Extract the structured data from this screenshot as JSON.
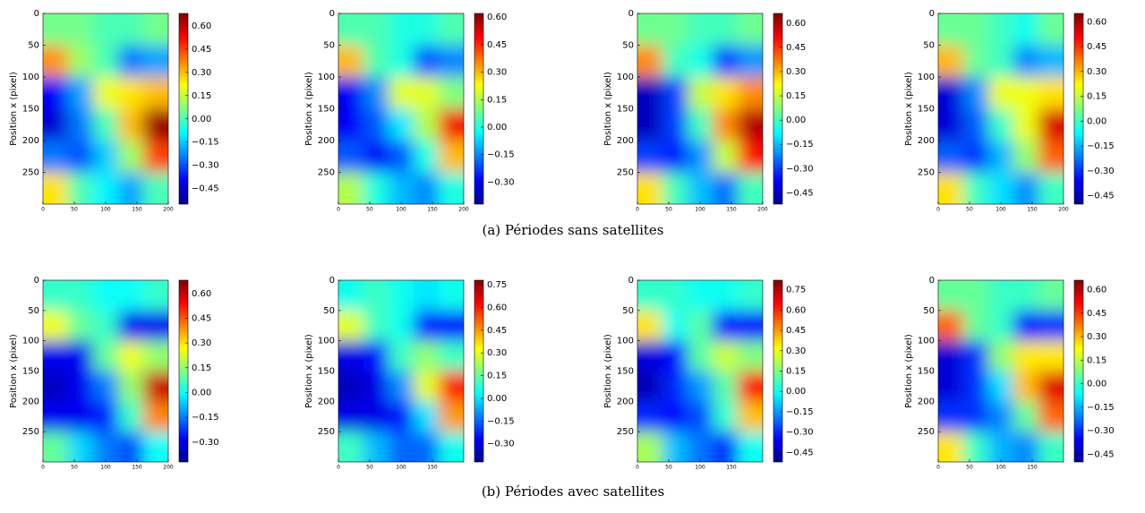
{
  "chart_data": [
    {
      "type": "heatmap",
      "ylabel": "Position x (pixel)",
      "xlim": [
        0,
        200
      ],
      "ylim": [
        0,
        300
      ],
      "xticks": [
        0,
        50,
        100,
        150,
        200
      ],
      "yticks": [
        0,
        50,
        100,
        150,
        200,
        250
      ],
      "colormap": "jet",
      "zlim": [
        -0.55,
        0.68
      ],
      "zticks": [
        {
          "value": 0.6,
          "label": "0.60"
        },
        {
          "value": 0.45,
          "label": "0.45"
        },
        {
          "value": 0.3,
          "label": "0.30"
        },
        {
          "value": 0.15,
          "label": "0.15"
        },
        {
          "value": 0,
          "label": "0.00"
        },
        {
          "value": -0.15,
          "label": "−0.15"
        },
        {
          "value": -0.3,
          "label": "−0.30"
        },
        {
          "value": -0.45,
          "label": "−0.45"
        }
      ],
      "z": [
        [
          0.05,
          0.05,
          0.0,
          0.0,
          0.05
        ],
        [
          0.35,
          0.1,
          0.0,
          -0.25,
          -0.2
        ],
        [
          -0.4,
          -0.2,
          0.2,
          0.25,
          0.3
        ],
        [
          -0.45,
          -0.25,
          0.0,
          0.3,
          0.65
        ],
        [
          -0.25,
          -0.3,
          -0.15,
          0.1,
          0.45
        ],
        [
          0.25,
          0.0,
          -0.1,
          -0.2,
          0.0
        ]
      ]
    },
    {
      "type": "heatmap",
      "ylabel": "Position x (pixel)",
      "xlim": [
        0,
        200
      ],
      "ylim": [
        0,
        300
      ],
      "xticks": [
        0,
        50,
        100,
        150,
        200
      ],
      "yticks": [
        0,
        50,
        100,
        150,
        200,
        250
      ],
      "colormap": "jet",
      "zlim": [
        -0.42,
        0.62
      ],
      "zticks": [
        {
          "value": 0.6,
          "label": "0.60"
        },
        {
          "value": 0.45,
          "label": "0.45"
        },
        {
          "value": 0.3,
          "label": "0.30"
        },
        {
          "value": 0.15,
          "label": "0.15"
        },
        {
          "value": 0,
          "label": "0.00"
        },
        {
          "value": -0.15,
          "label": "−0.15"
        },
        {
          "value": -0.3,
          "label": "−0.30"
        }
      ],
      "z": [
        [
          0.05,
          0.05,
          0.0,
          0.0,
          0.05
        ],
        [
          0.3,
          0.05,
          0.0,
          -0.2,
          -0.15
        ],
        [
          -0.3,
          -0.15,
          0.2,
          0.2,
          0.1
        ],
        [
          -0.3,
          -0.2,
          -0.05,
          0.15,
          0.5
        ],
        [
          -0.2,
          -0.3,
          -0.2,
          0.0,
          0.3
        ],
        [
          0.15,
          0.0,
          -0.1,
          -0.15,
          0.0
        ]
      ]
    },
    {
      "type": "heatmap",
      "ylabel": "Position x (pixel)",
      "xlim": [
        0,
        200
      ],
      "ylim": [
        0,
        300
      ],
      "xticks": [
        0,
        50,
        100,
        150,
        200
      ],
      "yticks": [
        0,
        50,
        100,
        150,
        200,
        250
      ],
      "colormap": "jet",
      "zlim": [
        -0.52,
        0.66
      ],
      "zticks": [
        {
          "value": 0.6,
          "label": "0.60"
        },
        {
          "value": 0.45,
          "label": "0.45"
        },
        {
          "value": 0.3,
          "label": "0.30"
        },
        {
          "value": 0.15,
          "label": "0.15"
        },
        {
          "value": 0,
          "label": "0.00"
        },
        {
          "value": -0.15,
          "label": "−0.15"
        },
        {
          "value": -0.3,
          "label": "−0.30"
        },
        {
          "value": -0.45,
          "label": "−0.45"
        }
      ],
      "z": [
        [
          0.05,
          0.05,
          0.0,
          0.0,
          0.05
        ],
        [
          0.35,
          0.0,
          -0.05,
          -0.3,
          -0.2
        ],
        [
          -0.45,
          -0.3,
          0.15,
          0.25,
          0.35
        ],
        [
          -0.45,
          -0.3,
          0.0,
          0.35,
          0.6
        ],
        [
          -0.3,
          -0.35,
          -0.2,
          0.15,
          0.5
        ],
        [
          0.25,
          0.0,
          -0.15,
          -0.25,
          0.0
        ]
      ]
    },
    {
      "type": "heatmap",
      "ylabel": "Position x (pixel)",
      "xlim": [
        0,
        200
      ],
      "ylim": [
        0,
        300
      ],
      "xticks": [
        0,
        50,
        100,
        150,
        200
      ],
      "yticks": [
        0,
        50,
        100,
        150,
        200,
        250
      ],
      "colormap": "jet",
      "zlim": [
        -0.5,
        0.65
      ],
      "zticks": [
        {
          "value": 0.6,
          "label": "0.60"
        },
        {
          "value": 0.45,
          "label": "0.45"
        },
        {
          "value": 0.3,
          "label": "0.30"
        },
        {
          "value": 0.15,
          "label": "0.15"
        },
        {
          "value": 0,
          "label": "0.00"
        },
        {
          "value": -0.15,
          "label": "−0.15"
        },
        {
          "value": -0.3,
          "label": "−0.30"
        },
        {
          "value": -0.45,
          "label": "−0.45"
        }
      ],
      "z": [
        [
          0.05,
          0.05,
          0.0,
          -0.05,
          0.05
        ],
        [
          0.3,
          0.05,
          0.0,
          -0.2,
          -0.15
        ],
        [
          -0.4,
          -0.2,
          0.2,
          0.2,
          0.25
        ],
        [
          -0.4,
          -0.25,
          0.0,
          0.2,
          0.55
        ],
        [
          -0.25,
          -0.3,
          -0.15,
          0.1,
          0.4
        ],
        [
          0.25,
          0.0,
          -0.1,
          -0.2,
          0.0
        ]
      ]
    },
    {
      "type": "heatmap",
      "ylabel": "Position x (pixel)",
      "xlim": [
        0,
        200
      ],
      "ylim": [
        0,
        300
      ],
      "xticks": [
        0,
        50,
        100,
        150,
        200
      ],
      "yticks": [
        0,
        50,
        100,
        150,
        200,
        250
      ],
      "colormap": "jet",
      "zlim": [
        -0.42,
        0.68
      ],
      "zticks": [
        {
          "value": 0.6,
          "label": "0.60"
        },
        {
          "value": 0.45,
          "label": "0.45"
        },
        {
          "value": 0.3,
          "label": "0.30"
        },
        {
          "value": 0.15,
          "label": "0.15"
        },
        {
          "value": 0,
          "label": "0.00"
        },
        {
          "value": -0.15,
          "label": "−0.15"
        },
        {
          "value": -0.3,
          "label": "−0.30"
        }
      ],
      "z": [
        [
          0.05,
          0.05,
          0.0,
          0.0,
          0.05
        ],
        [
          0.25,
          0.1,
          0.05,
          -0.3,
          -0.3
        ],
        [
          -0.3,
          -0.3,
          0.1,
          0.25,
          0.15
        ],
        [
          -0.35,
          -0.3,
          -0.15,
          0.15,
          0.6
        ],
        [
          -0.3,
          -0.3,
          -0.25,
          0.05,
          0.4
        ],
        [
          0.1,
          -0.05,
          -0.15,
          -0.2,
          0.0
        ]
      ]
    },
    {
      "type": "heatmap",
      "ylabel": "Position x (pixel)",
      "xlim": [
        0,
        200
      ],
      "ylim": [
        0,
        300
      ],
      "xticks": [
        0,
        50,
        100,
        150
      ],
      "yticks": [
        0,
        50,
        100,
        150,
        200,
        250
      ],
      "colormap": "jet",
      "zlim": [
        -0.42,
        0.78
      ],
      "zticks": [
        {
          "value": 0.75,
          "label": "0.75"
        },
        {
          "value": 0.6,
          "label": "0.60"
        },
        {
          "value": 0.45,
          "label": "0.45"
        },
        {
          "value": 0.3,
          "label": "0.30"
        },
        {
          "value": 0.15,
          "label": "0.15"
        },
        {
          "value": 0,
          "label": "0.00"
        },
        {
          "value": -0.15,
          "label": "−0.15"
        },
        {
          "value": -0.3,
          "label": "−0.30"
        }
      ],
      "z": [
        [
          0.05,
          0.1,
          0.05,
          0.0,
          0.05
        ],
        [
          0.3,
          0.1,
          0.05,
          -0.25,
          -0.25
        ],
        [
          -0.3,
          -0.25,
          0.1,
          0.2,
          0.1
        ],
        [
          -0.35,
          -0.3,
          -0.1,
          0.3,
          0.6
        ],
        [
          -0.3,
          -0.3,
          -0.25,
          0.0,
          0.45
        ],
        [
          0.1,
          -0.05,
          -0.15,
          -0.15,
          0.05
        ]
      ]
    },
    {
      "type": "heatmap",
      "ylabel": "Position x (pixel)",
      "xlim": [
        0,
        200
      ],
      "ylim": [
        0,
        300
      ],
      "xticks": [
        0,
        50,
        100,
        150
      ],
      "yticks": [
        0,
        50,
        100,
        150,
        200,
        250
      ],
      "colormap": "jet",
      "zlim": [
        -0.52,
        0.82
      ],
      "zticks": [
        {
          "value": 0.75,
          "label": "0.75"
        },
        {
          "value": 0.6,
          "label": "0.60"
        },
        {
          "value": 0.45,
          "label": "0.45"
        },
        {
          "value": 0.3,
          "label": "0.30"
        },
        {
          "value": 0.15,
          "label": "0.15"
        },
        {
          "value": 0,
          "label": "0.00"
        },
        {
          "value": -0.15,
          "label": "−0.15"
        },
        {
          "value": -0.3,
          "label": "−0.30"
        },
        {
          "value": -0.45,
          "label": "−0.45"
        }
      ],
      "z": [
        [
          0.05,
          0.05,
          0.0,
          0.0,
          0.05
        ],
        [
          0.35,
          0.0,
          0.1,
          -0.35,
          -0.35
        ],
        [
          -0.4,
          -0.35,
          0.1,
          0.25,
          0.15
        ],
        [
          -0.45,
          -0.3,
          -0.15,
          0.1,
          0.65
        ],
        [
          -0.3,
          -0.35,
          -0.25,
          0.05,
          0.4
        ],
        [
          0.2,
          -0.1,
          -0.2,
          -0.3,
          0.0
        ]
      ]
    },
    {
      "type": "heatmap",
      "ylabel": "Position x (pixel)",
      "xlim": [
        0,
        200
      ],
      "ylim": [
        0,
        300
      ],
      "xticks": [
        0,
        50,
        100,
        150
      ],
      "yticks": [
        0,
        50,
        100,
        150,
        200,
        250
      ],
      "colormap": "jet",
      "zlim": [
        -0.5,
        0.66
      ],
      "zticks": [
        {
          "value": 0.6,
          "label": "0.60"
        },
        {
          "value": 0.45,
          "label": "0.45"
        },
        {
          "value": 0.3,
          "label": "0.30"
        },
        {
          "value": 0.15,
          "label": "0.15"
        },
        {
          "value": 0,
          "label": "0.00"
        },
        {
          "value": -0.15,
          "label": "−0.15"
        },
        {
          "value": -0.3,
          "label": "−0.30"
        },
        {
          "value": -0.45,
          "label": "−0.45"
        }
      ],
      "z": [
        [
          0.05,
          0.05,
          0.0,
          0.0,
          0.05
        ],
        [
          0.4,
          0.05,
          0.0,
          -0.35,
          -0.3
        ],
        [
          -0.4,
          -0.3,
          0.1,
          0.25,
          0.25
        ],
        [
          -0.4,
          -0.3,
          -0.1,
          0.3,
          0.55
        ],
        [
          -0.3,
          -0.3,
          -0.2,
          0.05,
          0.4
        ],
        [
          0.25,
          0.0,
          -0.15,
          -0.2,
          0.0
        ]
      ]
    }
  ],
  "captions": [
    "(a) Périodes sans satellites",
    "(b) Périodes avec satellites"
  ]
}
